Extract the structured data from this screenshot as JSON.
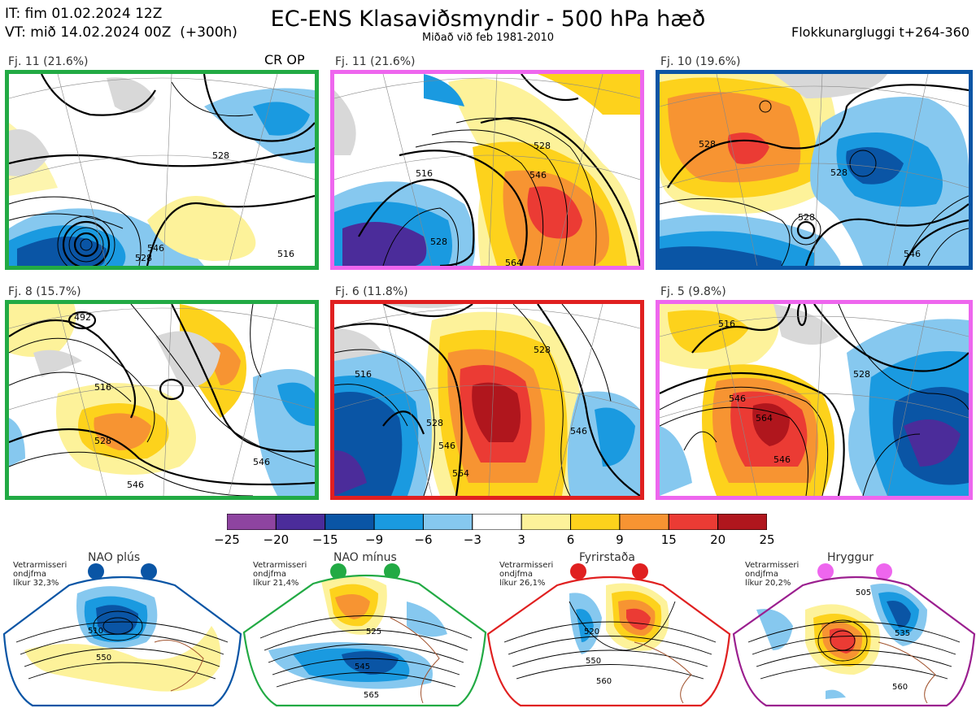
{
  "header": {
    "it_line": "IT: fim 01.02.2024 12Z",
    "vt_line": "VT: mið 14.02.2024 00Z  (+300h)",
    "title": "EC-ENS Klasaviðsmyndir - 500 hPa hæð",
    "subtitle": "Miðað við feb 1981-2010",
    "right": "Flokkunargluggi t+264-360"
  },
  "panels": [
    {
      "label": "Fj. 11 (21.6%)",
      "extra": "CR OP",
      "border_color": "#22aa44",
      "contours": [
        "528",
        "546",
        "528",
        "516"
      ]
    },
    {
      "label": "Fj. 11 (21.6%)",
      "border_color": "#ee66ee",
      "contours": [
        "528",
        "546",
        "516",
        "528",
        "564"
      ]
    },
    {
      "label": "Fj. 10 (19.6%)",
      "border_color": "#0a55a5",
      "contours": [
        "528",
        "528",
        "528",
        "546"
      ]
    },
    {
      "label": "Fj. 8 (15.7%)",
      "border_color": "#22aa44",
      "contours": [
        "492",
        "516",
        "528",
        "546",
        "546"
      ]
    },
    {
      "label": "Fj. 6 (11.8%)",
      "border_color": "#e02020",
      "contours": [
        "516",
        "528",
        "546",
        "564",
        "546",
        "528"
      ]
    },
    {
      "label": "Fj. 5 (9.8%)",
      "border_color": "#ee66ee",
      "contours": [
        "516",
        "528",
        "546",
        "564",
        "546"
      ]
    }
  ],
  "colorbar": {
    "colors": [
      "#8e44a0",
      "#4b2c9a",
      "#0a55a5",
      "#1a9ae0",
      "#86c8ef",
      "#ffffff",
      "#fdf29a",
      "#fdd21c",
      "#f79432",
      "#eb3b34",
      "#b0161d"
    ],
    "ticks": [
      "−25",
      "−20",
      "−15",
      "−9",
      "−6",
      "−3",
      "3",
      "6",
      "9",
      "15",
      "20",
      "25"
    ]
  },
  "regimes": [
    {
      "title": "NAO plús",
      "note_lines": [
        "Vetrarmisseri",
        "ondjfma",
        "líkur 32,3%"
      ],
      "color": "#0a55a5",
      "contours": [
        "510",
        "550"
      ]
    },
    {
      "title": "NAO mínus",
      "note_lines": [
        "Vetrarmisseri",
        "ondjfma",
        "líkur 21,4%"
      ],
      "color": "#22aa44",
      "contours": [
        "525",
        "545",
        "565"
      ]
    },
    {
      "title": "Fyrirstaða",
      "note_lines": [
        "Vetrarmisseri",
        "ondjfma",
        "líkur 26,1%"
      ],
      "color": "#e02020",
      "contours": [
        "520",
        "550",
        "560"
      ]
    },
    {
      "title": "Hryggur",
      "note_lines": [
        "Vetrarmisseri",
        "ondjfma",
        "líkur 20,2%"
      ],
      "color": "#9b1f8f",
      "contours": [
        "505",
        "535",
        "560"
      ]
    }
  ]
}
